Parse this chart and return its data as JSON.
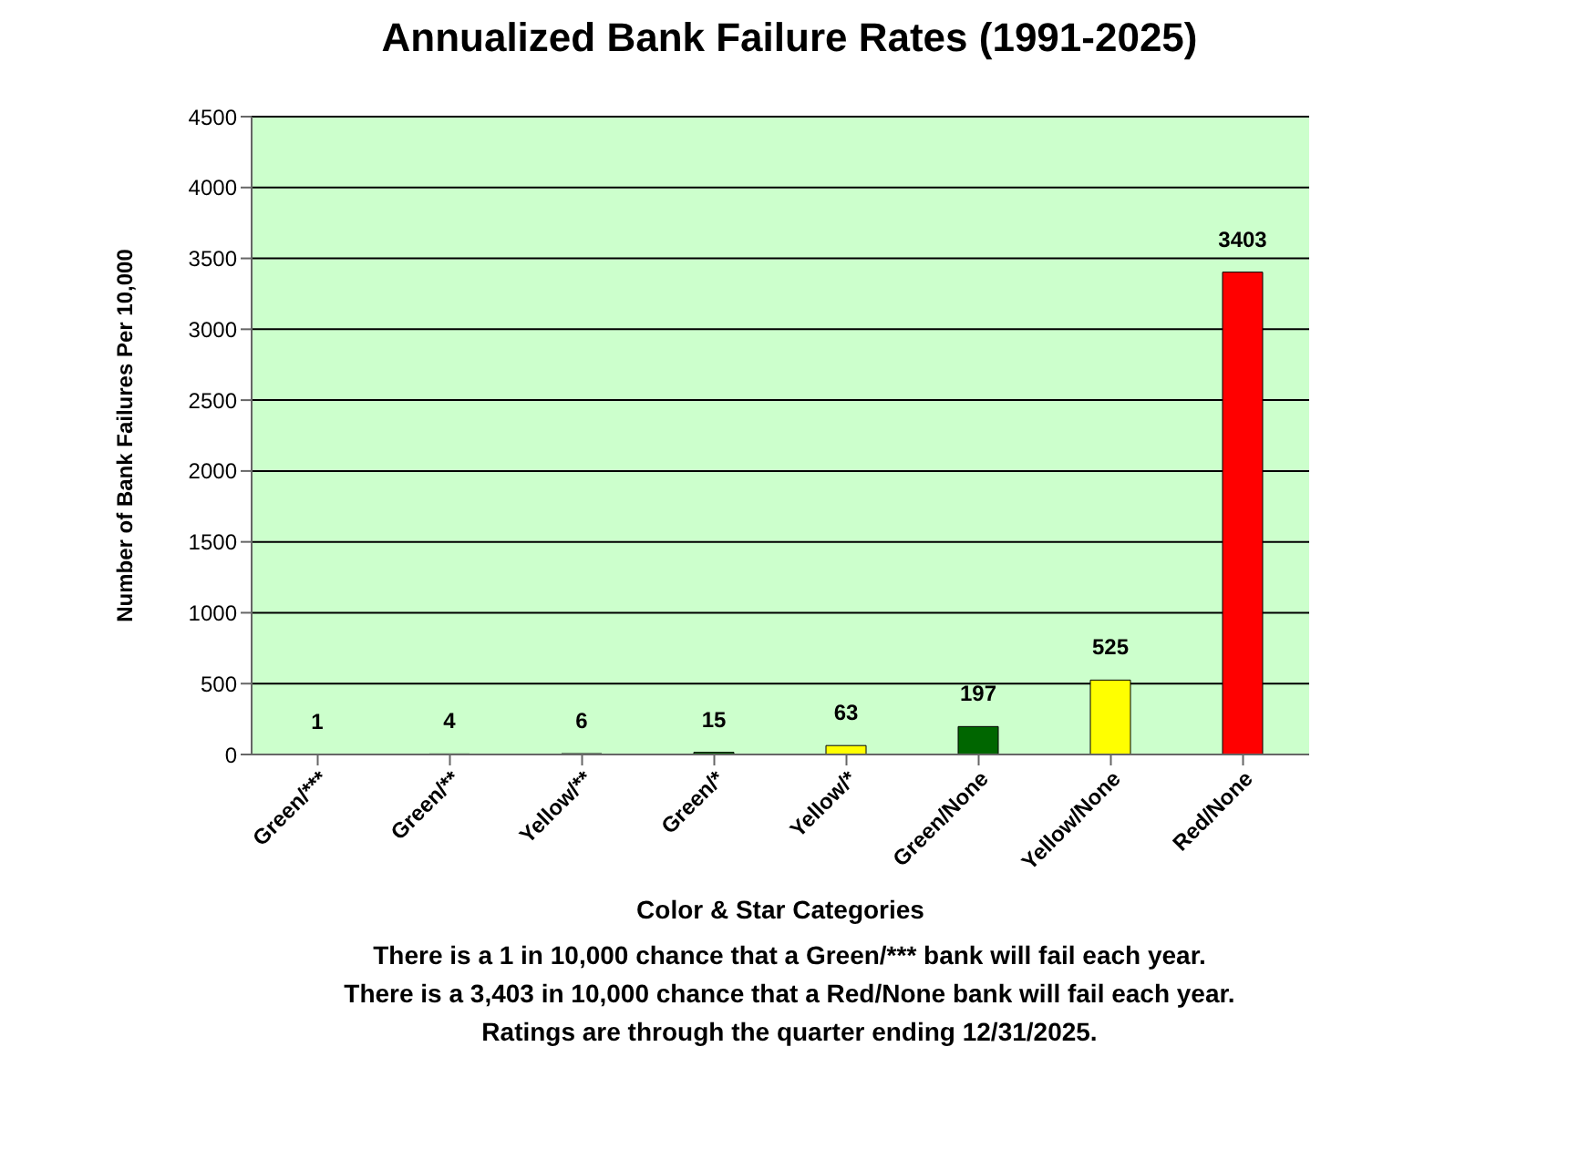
{
  "chart_data": {
    "type": "bar",
    "title": "Annualized Bank Failure Rates (1991-2025)",
    "xlabel": "Color & Star Categories",
    "ylabel": "Number of Bank Failures Per 10,000",
    "categories": [
      "Green/***",
      "Green/**",
      "Yellow/**",
      "Green/*",
      "Yellow/*",
      "Green/None",
      "Yellow/None",
      "Red/None"
    ],
    "values": [
      1,
      4,
      6,
      15,
      63,
      197,
      525,
      3403
    ],
    "colors": [
      "#006600",
      "#006600",
      "#ffff00",
      "#006600",
      "#ffff00",
      "#006600",
      "#ffff00",
      "#ff0000"
    ],
    "ylim": [
      0,
      4500
    ],
    "yticks": [
      0,
      500,
      1000,
      1500,
      2000,
      2500,
      3000,
      3500,
      4000,
      4500
    ],
    "grid": "y",
    "data_labels": true,
    "annotations": [
      "There is a 1 in 10,000 chance that a Green/*** bank will fail each year.",
      "There is a 3,403 in 10,000 chance that a Red/None bank will fail each year.",
      "Ratings are through the quarter ending 12/31/2025."
    ]
  }
}
